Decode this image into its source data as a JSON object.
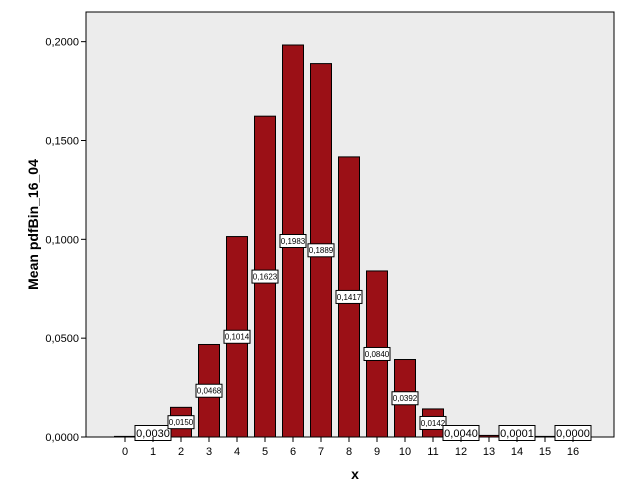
{
  "colors": {
    "plot_background": "#ececec",
    "bar_fill": "#9b1016",
    "outline": "#000000"
  },
  "chart_data": {
    "type": "bar",
    "xlabel": "x",
    "ylabel": "Mean pdfBin_16_04",
    "ylim": [
      0,
      0.215
    ],
    "y_ticks": [
      0,
      0.05,
      0.1,
      0.15,
      0.2
    ],
    "y_tick_labels": [
      "0,0000",
      "0,0500",
      "0,1000",
      "0,1500",
      "0,2000"
    ],
    "grid": false,
    "categories": [
      "0",
      "1",
      "2",
      "3",
      "4",
      "5",
      "6",
      "7",
      "8",
      "9",
      "10",
      "11",
      "12",
      "13",
      "14",
      "15",
      "16"
    ],
    "values": [
      0.0003,
      0.003,
      0.015,
      0.0468,
      0.1014,
      0.1623,
      0.1983,
      0.1889,
      0.1417,
      0.084,
      0.0392,
      0.0142,
      0.004,
      0.0008,
      0.0001,
      0.0,
      0.0
    ],
    "data_labels": [
      {
        "category": "1",
        "text": "0,0030"
      },
      {
        "category": "2",
        "text": "0,0150"
      },
      {
        "category": "3",
        "text": "0,0468"
      },
      {
        "category": "4",
        "text": "0,1014"
      },
      {
        "category": "5",
        "text": "0,1623"
      },
      {
        "category": "6",
        "text": "0,1983"
      },
      {
        "category": "7",
        "text": "0,1889"
      },
      {
        "category": "8",
        "text": "0,1417"
      },
      {
        "category": "9",
        "text": "0,0840"
      },
      {
        "category": "10",
        "text": "0,0392"
      },
      {
        "category": "11",
        "text": "0,0142"
      },
      {
        "category": "12",
        "text": "0,0040"
      },
      {
        "category": "14",
        "text": "0,0001"
      },
      {
        "category": "16",
        "text": "0,0000"
      }
    ]
  }
}
